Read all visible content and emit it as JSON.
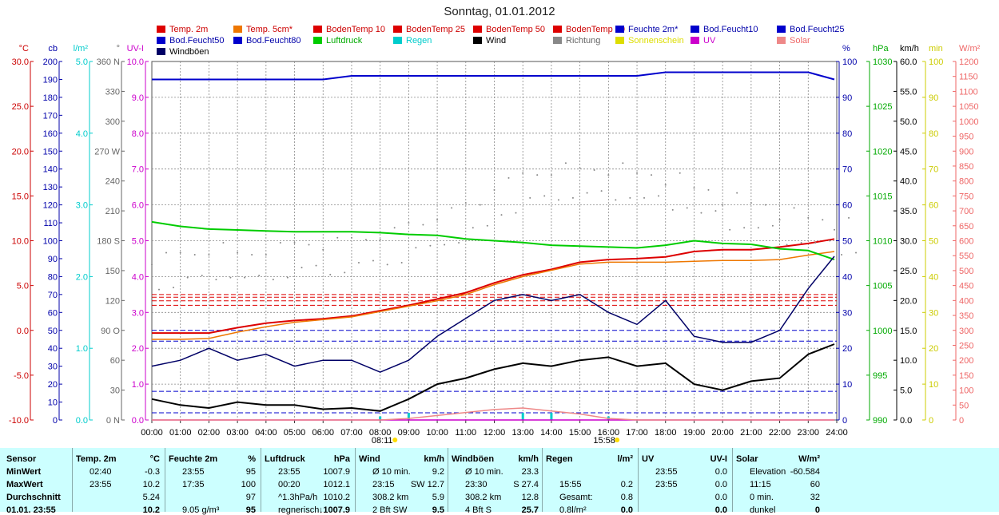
{
  "title": "Sonntag, 01.01.2012",
  "legend": [
    {
      "label": "Temp. 2m",
      "color": "#dd0000"
    },
    {
      "label": "Temp. 5cm*",
      "color": "#ee7700"
    },
    {
      "label": "BodenTemp 10",
      "color": "#dd0000"
    },
    {
      "label": "BodenTemp 25",
      "color": "#dd0000"
    },
    {
      "label": "BodenTemp 50",
      "color": "#dd0000"
    },
    {
      "label": "BodenTemp 80",
      "color": "#dd0000"
    },
    {
      "label": "Feuchte 2m*",
      "color": "#0000cc"
    },
    {
      "label": "Bod.Feucht10",
      "color": "#0000cc"
    },
    {
      "label": "Bod.Feucht25",
      "color": "#0000cc"
    },
    {
      "label": "Bod.Feucht50",
      "color": "#0000cc"
    },
    {
      "label": "Bod.Feucht80",
      "color": "#0000cc"
    },
    {
      "label": "Luftdruck",
      "color": "#00cc00"
    },
    {
      "label": "Regen",
      "color": "#00cccc"
    },
    {
      "label": "Wind",
      "color": "#000000"
    },
    {
      "label": "Richtung",
      "color": "#888888"
    },
    {
      "label": "Sonnenschein",
      "color": "#dddd00"
    },
    {
      "label": "UV",
      "color": "#cc00cc"
    },
    {
      "label": "Solar",
      "color": "#ee8888"
    },
    {
      "label": "Windböen",
      "color": "#000066"
    }
  ],
  "axes": {
    "left": [
      {
        "unit": "°C",
        "color": "#cc0000",
        "ticks": [
          "30.0",
          "25.0",
          "20.0",
          "15.0",
          "10.0",
          "5.0",
          "0.0",
          "-5.0",
          "-10.0"
        ]
      },
      {
        "unit": "cb",
        "color": "#0000aa",
        "ticks": [
          "200",
          "190",
          "180",
          "170",
          "160",
          "150",
          "140",
          "130",
          "120",
          "110",
          "100",
          "90",
          "80",
          "70",
          "60",
          "50",
          "40",
          "30",
          "20",
          "10",
          "0"
        ]
      },
      {
        "unit": "l/m²",
        "color": "#00cccc",
        "ticks": [
          "5.0",
          "4.0",
          "3.0",
          "2.0",
          "1.0",
          "0.0"
        ]
      },
      {
        "unit": "°",
        "color": "#666666",
        "ticks": [
          "360 N",
          "330",
          "300",
          "270 W",
          "240",
          "210",
          "180 S",
          "150",
          "120",
          "90 O",
          "60",
          "30",
          "0 N"
        ]
      },
      {
        "unit": "UV-I",
        "color": "#cc00cc",
        "ticks": [
          "10.0",
          "9.0",
          "8.0",
          "7.0",
          "6.0",
          "5.0",
          "4.0",
          "3.0",
          "2.0",
          "1.0",
          "0.0"
        ]
      }
    ],
    "right": [
      {
        "unit": "%",
        "color": "#0000aa",
        "ticks": [
          "100",
          "90",
          "80",
          "70",
          "60",
          "50",
          "40",
          "30",
          "20",
          "10",
          "0"
        ]
      },
      {
        "unit": "hPa",
        "color": "#00aa00",
        "ticks": [
          "1030",
          "1025",
          "1020",
          "1015",
          "1010",
          "1005",
          "1000",
          "995",
          "990"
        ]
      },
      {
        "unit": "km/h",
        "color": "#000000",
        "ticks": [
          "60.0",
          "55.0",
          "50.0",
          "45.0",
          "40.0",
          "35.0",
          "30.0",
          "25.0",
          "20.0",
          "15.0",
          "10.0",
          "5.0",
          "0.0"
        ]
      },
      {
        "unit": "min",
        "color": "#cccc00",
        "ticks": [
          "100",
          "90",
          "80",
          "70",
          "60",
          "50",
          "40",
          "30",
          "20",
          "10",
          "0"
        ]
      },
      {
        "unit": "W/m²",
        "color": "#ee6666",
        "ticks": [
          "1200",
          "1150",
          "1100",
          "1050",
          "1000",
          "950",
          "900",
          "850",
          "800",
          "750",
          "700",
          "650",
          "600",
          "550",
          "500",
          "450",
          "400",
          "350",
          "300",
          "250",
          "200",
          "150",
          "100",
          "50",
          "0"
        ]
      }
    ],
    "x_ticks": [
      "00:00",
      "01:00",
      "02:00",
      "03:00",
      "04:00",
      "05:00",
      "06:00",
      "07:00",
      "08:00",
      "09:00",
      "10:00",
      "11:00",
      "12:00",
      "13:00",
      "14:00",
      "15:00",
      "16:00",
      "17:00",
      "18:00",
      "19:00",
      "20:00",
      "21:00",
      "22:00",
      "23:00",
      "24:00"
    ],
    "sunrise": "08:11",
    "sunset": "15:58"
  },
  "chart_data": {
    "type": "line",
    "title": "Sonntag, 01.01.2012",
    "x": [
      "00:00",
      "01:00",
      "02:00",
      "03:00",
      "04:00",
      "05:00",
      "06:00",
      "07:00",
      "08:00",
      "09:00",
      "10:00",
      "11:00",
      "12:00",
      "13:00",
      "14:00",
      "15:00",
      "16:00",
      "17:00",
      "18:00",
      "19:00",
      "20:00",
      "21:00",
      "22:00",
      "23:00",
      "23:55"
    ],
    "xlim": [
      "00:00",
      "24:00"
    ],
    "grid": true,
    "legend_position": "top",
    "series": [
      {
        "name": "Temp. 2m",
        "axis": "°C",
        "color": "#dd0000",
        "values": [
          -0.3,
          -0.3,
          -0.3,
          0.3,
          0.8,
          1.1,
          1.3,
          1.6,
          2.2,
          2.8,
          3.5,
          4.2,
          5.3,
          6.2,
          6.8,
          7.6,
          7.9,
          8.0,
          8.2,
          8.8,
          9.0,
          9.0,
          9.3,
          9.7,
          10.2
        ]
      },
      {
        "name": "Temp. 5cm*",
        "axis": "°C",
        "color": "#ee7700",
        "values": [
          -1.0,
          -1.0,
          -0.9,
          -0.2,
          0.4,
          0.9,
          1.2,
          1.5,
          2.1,
          2.7,
          3.3,
          4.0,
          5.1,
          6.0,
          6.7,
          7.4,
          7.6,
          7.6,
          7.6,
          7.7,
          7.8,
          7.8,
          7.9,
          8.4,
          8.8
        ]
      },
      {
        "name": "Feuchte 2m*",
        "axis": "%",
        "color": "#0000cc",
        "values": [
          95,
          95,
          95,
          95,
          95,
          95,
          95,
          96,
          96,
          96,
          96,
          96,
          96,
          96,
          96,
          96,
          96,
          96,
          97,
          97,
          97,
          97,
          97,
          97,
          95
        ]
      },
      {
        "name": "Luftdruck",
        "axis": "hPa",
        "color": "#00cc00",
        "values": [
          1012.1,
          1011.6,
          1011.3,
          1011.2,
          1011.1,
          1011.0,
          1011.0,
          1011.0,
          1010.9,
          1010.7,
          1010.6,
          1010.2,
          1010.0,
          1009.8,
          1009.5,
          1009.4,
          1009.3,
          1009.2,
          1009.5,
          1010.0,
          1009.7,
          1009.6,
          1009.1,
          1008.9,
          1007.9
        ]
      },
      {
        "name": "Wind",
        "axis": "km/h",
        "color": "#000000",
        "values": [
          3.5,
          2.5,
          2.0,
          3.0,
          2.5,
          2.5,
          1.8,
          2.0,
          1.5,
          3.5,
          6.0,
          7.0,
          8.5,
          9.5,
          9.0,
          10.0,
          10.5,
          9.0,
          9.5,
          6.0,
          5.0,
          6.5,
          7.0,
          11.0,
          12.7
        ]
      },
      {
        "name": "Windböen",
        "axis": "km/h",
        "color": "#000066",
        "values": [
          9.0,
          10.0,
          12.0,
          10.0,
          11.0,
          9.0,
          10.0,
          10.0,
          8.0,
          10.0,
          14.0,
          17.0,
          20.0,
          21.0,
          20.0,
          21.0,
          18.0,
          16.0,
          20.0,
          14.0,
          13.0,
          13.0,
          15.0,
          22.0,
          27.4
        ]
      },
      {
        "name": "Richtung",
        "axis": "°",
        "color": "#888888",
        "values": [
          150,
          155,
          160,
          155,
          160,
          165,
          165,
          170,
          175,
          185,
          195,
          205,
          225,
          235,
          240,
          240,
          240,
          235,
          230,
          220,
          210,
          205,
          195,
          190,
          185
        ]
      },
      {
        "name": "Regen",
        "axis": "l/m²",
        "color": "#00cccc",
        "values": [
          0,
          0,
          0,
          0,
          0,
          0,
          0,
          0,
          0.05,
          0.1,
          0,
          0,
          0,
          0.1,
          0.1,
          0,
          0.05,
          0,
          0,
          0,
          0,
          0,
          0,
          0,
          0
        ]
      },
      {
        "name": "UV",
        "axis": "UV-I",
        "color": "#cc00cc",
        "values": [
          0,
          0,
          0,
          0,
          0,
          0,
          0,
          0,
          0,
          0,
          0,
          0,
          0,
          0,
          0,
          0,
          0,
          0,
          0,
          0,
          0,
          0,
          0,
          0,
          0
        ]
      },
      {
        "name": "Solar",
        "axis": "W/m²",
        "color": "#ee8888",
        "values": [
          0,
          0,
          0,
          0,
          0,
          0,
          0,
          0,
          0,
          5,
          15,
          25,
          35,
          40,
          30,
          20,
          5,
          0,
          0,
          0,
          0,
          0,
          0,
          0,
          0
        ]
      }
    ],
    "reference_lines": [
      {
        "axis": "°C",
        "value": 4.0,
        "color": "#dd0000"
      },
      {
        "axis": "°C",
        "value": 3.7,
        "color": "#dd0000"
      },
      {
        "axis": "°C",
        "value": 3.3,
        "color": "#dd0000"
      },
      {
        "axis": "°C",
        "value": 2.8,
        "color": "#dd0000"
      },
      {
        "axis": "%",
        "value": 25,
        "color": "#0000cc"
      },
      {
        "axis": "%",
        "value": 22,
        "color": "#0000cc"
      },
      {
        "axis": "%",
        "value": 8,
        "color": "#0000cc"
      },
      {
        "axis": "%",
        "value": 2,
        "color": "#0000cc"
      }
    ]
  },
  "footer": {
    "row_labels": [
      "Sensor",
      "MinWert",
      "MaxWert",
      "Durchschnitt",
      "01.01. 23:55"
    ],
    "columns": [
      {
        "header": "Temp. 2m",
        "unit": "°C",
        "rows": [
          [
            "02:40",
            "-0.3"
          ],
          [
            "23:55",
            "10.2"
          ],
          [
            "",
            "5.24"
          ],
          [
            "",
            "10.2"
          ]
        ]
      },
      {
        "header": "Feuchte 2m",
        "unit": "%",
        "rows": [
          [
            "23:55",
            "95"
          ],
          [
            "17:35",
            "100"
          ],
          [
            "",
            "97"
          ],
          [
            "9.05 g/m³",
            "95"
          ]
        ]
      },
      {
        "header": "Luftdruck",
        "unit": "hPa",
        "rows": [
          [
            "23:55",
            "1007.9"
          ],
          [
            "00:20",
            "1012.1"
          ],
          [
            "^1.3hPa/h",
            "1010.2"
          ],
          [
            "regnerisch",
            "↓1007.9"
          ]
        ]
      },
      {
        "header": "Wind",
        "unit": "km/h",
        "rows": [
          [
            "Ø 10 min.",
            "9.2"
          ],
          [
            "23:15",
            "SW 12.7"
          ],
          [
            "308.2 km",
            "5.9"
          ],
          [
            "2 Bft SW",
            "9.5"
          ]
        ]
      },
      {
        "header": "Windböen",
        "unit": "km/h",
        "rows": [
          [
            "Ø 10 min.",
            "23.3"
          ],
          [
            "23:30",
            "S 27.4"
          ],
          [
            "308.2 km",
            "12.8"
          ],
          [
            "4 Bft S",
            "25.7"
          ]
        ]
      },
      {
        "header": "Regen",
        "unit": "l/m²",
        "rows": [
          [
            "",
            ""
          ],
          [
            "15:55",
            "0.2"
          ],
          [
            "Gesamt:",
            "0.8"
          ],
          [
            "0.8l/m²",
            "0.0"
          ]
        ]
      },
      {
        "header": "UV",
        "unit": "UV-I",
        "rows": [
          [
            "23:55",
            "0.0"
          ],
          [
            "23:55",
            "0.0"
          ],
          [
            "",
            "0.0"
          ],
          [
            "",
            "0.0"
          ]
        ]
      },
      {
        "header": "Solar",
        "unit": "W/m²",
        "rows": [
          [
            "Elevation",
            "-60.584"
          ],
          [
            "11:15",
            "60"
          ],
          [
            "0 min.",
            "32"
          ],
          [
            "dunkel",
            "0"
          ]
        ]
      }
    ]
  }
}
